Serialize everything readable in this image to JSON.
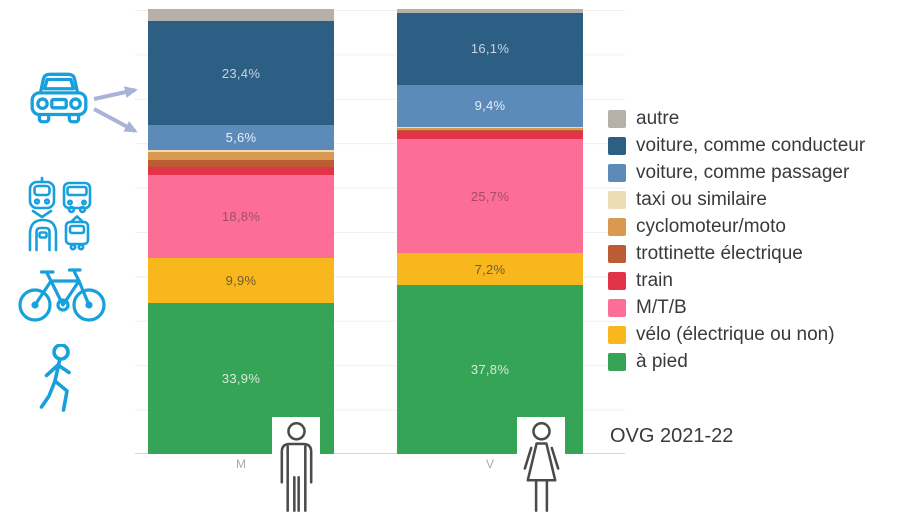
{
  "chart_data": {
    "type": "bar",
    "variant": "stacked-100",
    "unit": "%",
    "categories": [
      "M",
      "V"
    ],
    "series": [
      {
        "name": "autre",
        "color": "#b7b0a8",
        "values": [
          2.7,
          0.9
        ]
      },
      {
        "name": "voiture, comme conducteur",
        "color": "#2d5f85",
        "label_color": "#c9d3de",
        "values": [
          23.4,
          16.1
        ]
      },
      {
        "name": "voiture, comme passager",
        "color": "#5d8bb9",
        "label_color": "#e8edf4",
        "values": [
          5.6,
          9.4
        ]
      },
      {
        "name": "taxi ou similaire",
        "color": "#eedcb4",
        "values": [
          0.4,
          0.3
        ]
      },
      {
        "name": "cyclomoteur/moto",
        "color": "#d9994f",
        "values": [
          1.8,
          0.4
        ]
      },
      {
        "name": "trottinette électrique",
        "color": "#bc5c35",
        "values": [
          1.6,
          0.2
        ]
      },
      {
        "name": "train",
        "color": "#e23348",
        "values": [
          1.6,
          1.8
        ]
      },
      {
        "name": "M/T/B",
        "color": "#fc6e95",
        "label_color": "#a34e63",
        "values": [
          18.8,
          25.7
        ]
      },
      {
        "name": "vélo (électrique ou non)",
        "color": "#f8b71c",
        "label_color": "#6f5d30",
        "values": [
          9.9,
          7.2
        ]
      },
      {
        "name": "à pied",
        "color": "#35a457",
        "label_color": "#d7ebdb",
        "values": [
          33.9,
          37.8
        ]
      }
    ],
    "label_min_pct": 5,
    "gridlines": true,
    "legend_position": "right",
    "source_note": "OVG 2021-22"
  },
  "icons": {
    "left_column": [
      "car-icon",
      "train-icon",
      "bus-icon",
      "metro-icon",
      "tram-icon",
      "bicycle-icon",
      "pedestrian-icon"
    ],
    "category_figures": [
      "male-figure",
      "female-figure"
    ],
    "icon_color": "#18a0dc",
    "arrow_color": "#a9b3d8",
    "figure_color": "#4b4b4b"
  }
}
